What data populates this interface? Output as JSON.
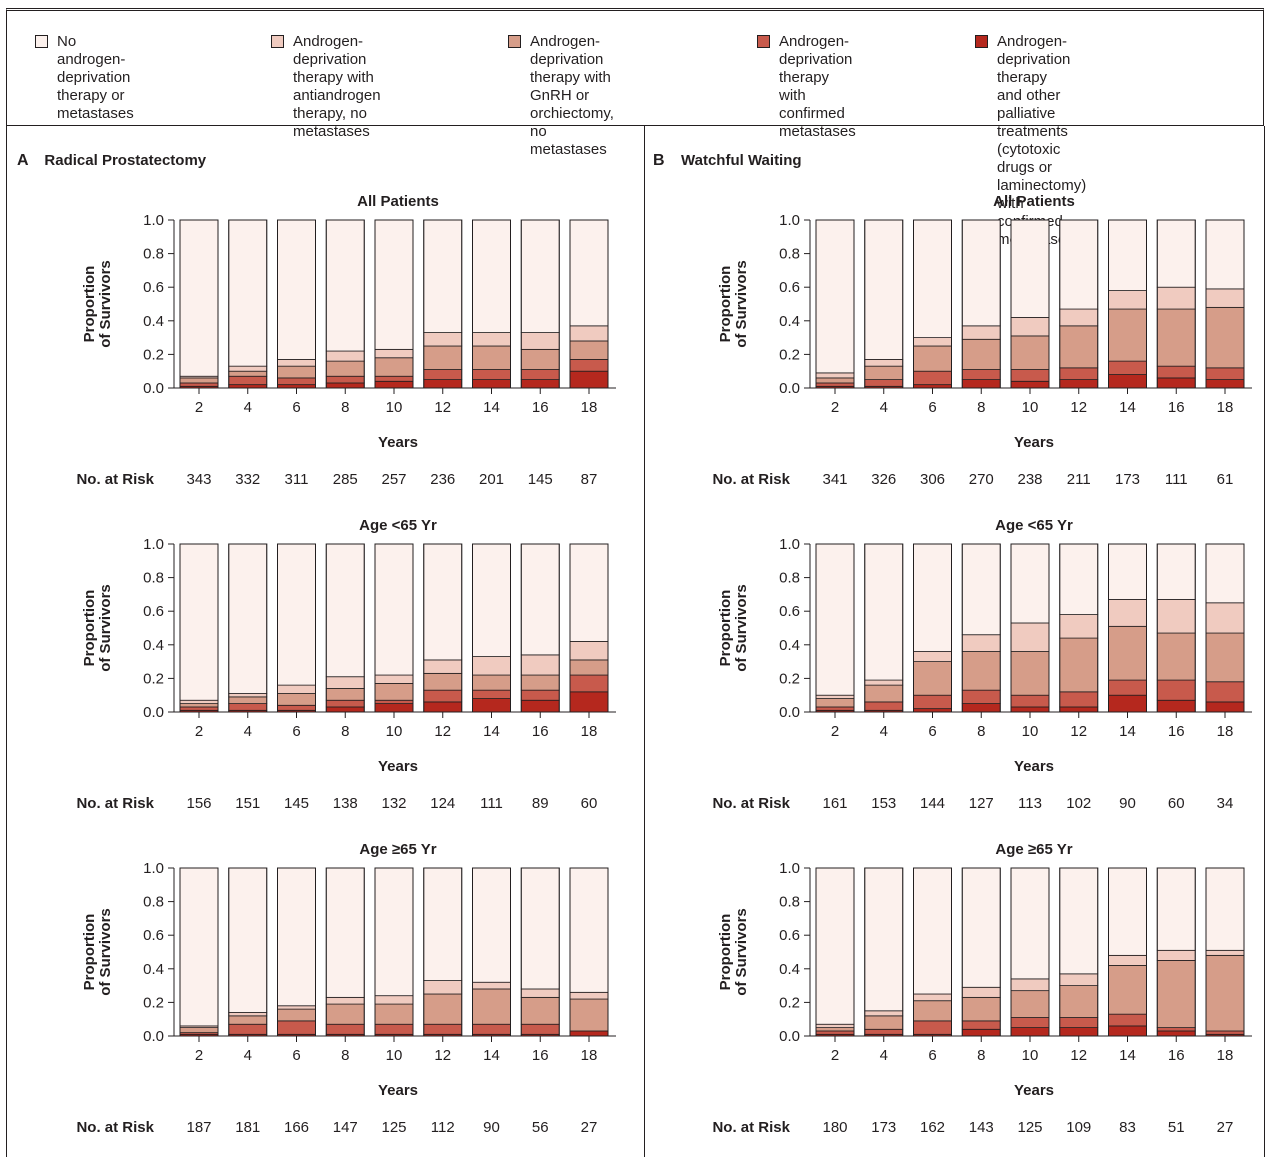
{
  "legend": [
    {
      "label": "No androgen-deprivation\ntherapy or metastases",
      "color": "#fcf1ed"
    },
    {
      "label": "Androgen-deprivation\ntherapy with antiandrogen\ntherapy, no metastases",
      "color": "#f0cbc0"
    },
    {
      "label": "Androgen-deprivation\ntherapy with GnRH or\norchiectomy, no metastases",
      "color": "#d69d89"
    },
    {
      "label": "Androgen-deprivation\ntherapy with confirmed\nmetastases",
      "color": "#c85a4c"
    },
    {
      "label": "Androgen-deprivation therapy\nand other palliative treatments\n(cytotoxic drugs or laminectomy)\nwith confirmed metastases",
      "color": "#b5281e"
    }
  ],
  "panels": [
    {
      "letter": "A",
      "title": "Radical Prostatectomy"
    },
    {
      "letter": "B",
      "title": "Watchful Waiting"
    }
  ],
  "axis": {
    "ylabel_line1": "Proportion",
    "ylabel_line2": "of Survivors",
    "xlabel": "Years",
    "yticks": [
      "0.0",
      "0.2",
      "0.4",
      "0.6",
      "0.8",
      "1.0"
    ],
    "risk_label": "No. at Risk"
  },
  "chart_data": [
    {
      "type": "bar",
      "stacked": true,
      "panel": "A",
      "title": "All Patients",
      "xlabel": "Years",
      "ylabel": "Proportion of Survivors",
      "ylim": [
        0,
        1
      ],
      "categories": [
        "2",
        "4",
        "6",
        "8",
        "10",
        "12",
        "14",
        "16",
        "18"
      ],
      "series": [
        {
          "name": "Androgen-deprivation therapy and other palliative treatments (cytotoxic drugs or laminectomy) with confirmed metastases",
          "values": [
            0.01,
            0.02,
            0.02,
            0.03,
            0.04,
            0.05,
            0.05,
            0.05,
            0.1
          ]
        },
        {
          "name": "Androgen-deprivation therapy with confirmed metastases",
          "values": [
            0.02,
            0.05,
            0.04,
            0.04,
            0.03,
            0.06,
            0.06,
            0.06,
            0.07
          ]
        },
        {
          "name": "Androgen-deprivation therapy with GnRH or orchiectomy, no metastases",
          "values": [
            0.03,
            0.03,
            0.07,
            0.09,
            0.11,
            0.14,
            0.14,
            0.12,
            0.11
          ]
        },
        {
          "name": "Androgen-deprivation therapy with antiandrogen therapy, no metastases",
          "values": [
            0.01,
            0.03,
            0.04,
            0.06,
            0.05,
            0.08,
            0.08,
            0.1,
            0.09
          ]
        },
        {
          "name": "No androgen-deprivation therapy or metastases",
          "values": [
            0.93,
            0.87,
            0.83,
            0.78,
            0.77,
            0.67,
            0.67,
            0.67,
            0.63
          ]
        }
      ],
      "at_risk": [
        343,
        332,
        311,
        285,
        257,
        236,
        201,
        145,
        87
      ]
    },
    {
      "type": "bar",
      "stacked": true,
      "panel": "A",
      "title": "Age <65 Yr",
      "xlabel": "Years",
      "ylabel": "Proportion of Survivors",
      "ylim": [
        0,
        1
      ],
      "categories": [
        "2",
        "4",
        "6",
        "8",
        "10",
        "12",
        "14",
        "16",
        "18"
      ],
      "series": [
        {
          "name": "Androgen-deprivation therapy and other palliative treatments (cytotoxic drugs or laminectomy) with confirmed metastases",
          "values": [
            0.01,
            0.01,
            0.01,
            0.03,
            0.05,
            0.06,
            0.08,
            0.07,
            0.12
          ]
        },
        {
          "name": "Androgen-deprivation therapy with confirmed metastases",
          "values": [
            0.02,
            0.04,
            0.03,
            0.04,
            0.02,
            0.07,
            0.05,
            0.06,
            0.1
          ]
        },
        {
          "name": "Androgen-deprivation therapy with GnRH or orchiectomy, no metastases",
          "values": [
            0.02,
            0.04,
            0.07,
            0.07,
            0.1,
            0.1,
            0.09,
            0.09,
            0.09
          ]
        },
        {
          "name": "Androgen-deprivation therapy with antiandrogen therapy, no metastases",
          "values": [
            0.02,
            0.02,
            0.05,
            0.07,
            0.05,
            0.08,
            0.11,
            0.12,
            0.11
          ]
        },
        {
          "name": "No androgen-deprivation therapy or metastases",
          "values": [
            0.93,
            0.89,
            0.84,
            0.79,
            0.78,
            0.69,
            0.67,
            0.66,
            0.58
          ]
        }
      ],
      "at_risk": [
        156,
        151,
        145,
        138,
        132,
        124,
        111,
        89,
        60
      ]
    },
    {
      "type": "bar",
      "stacked": true,
      "panel": "A",
      "title": "Age ≥65 Yr",
      "xlabel": "Years",
      "ylabel": "Proportion of Survivors",
      "ylim": [
        0,
        1
      ],
      "categories": [
        "2",
        "4",
        "6",
        "8",
        "10",
        "12",
        "14",
        "16",
        "18"
      ],
      "series": [
        {
          "name": "Androgen-deprivation therapy and other palliative treatments (cytotoxic drugs or laminectomy) with confirmed metastases",
          "values": [
            0.01,
            0.01,
            0.01,
            0.01,
            0.01,
            0.01,
            0.01,
            0.01,
            0.03
          ]
        },
        {
          "name": "Androgen-deprivation therapy with confirmed metastases",
          "values": [
            0.01,
            0.06,
            0.08,
            0.06,
            0.06,
            0.06,
            0.06,
            0.06,
            0.0
          ]
        },
        {
          "name": "Androgen-deprivation therapy with GnRH or orchiectomy, no metastases",
          "values": [
            0.03,
            0.05,
            0.07,
            0.12,
            0.12,
            0.18,
            0.21,
            0.16,
            0.19
          ]
        },
        {
          "name": "Androgen-deprivation therapy with antiandrogen therapy, no metastases",
          "values": [
            0.01,
            0.02,
            0.02,
            0.04,
            0.05,
            0.08,
            0.04,
            0.05,
            0.04
          ]
        },
        {
          "name": "No androgen-deprivation therapy or metastases",
          "values": [
            0.94,
            0.86,
            0.82,
            0.77,
            0.76,
            0.67,
            0.68,
            0.72,
            0.74
          ]
        }
      ],
      "at_risk": [
        187,
        181,
        166,
        147,
        125,
        112,
        90,
        56,
        27
      ]
    },
    {
      "type": "bar",
      "stacked": true,
      "panel": "B",
      "title": "All Patients",
      "xlabel": "Years",
      "ylabel": "Proportion of Survivors",
      "ylim": [
        0,
        1
      ],
      "categories": [
        "2",
        "4",
        "6",
        "8",
        "10",
        "12",
        "14",
        "16",
        "18"
      ],
      "series": [
        {
          "name": "Androgen-deprivation therapy and other palliative treatments (cytotoxic drugs or laminectomy) with confirmed metastases",
          "values": [
            0.01,
            0.01,
            0.02,
            0.05,
            0.04,
            0.05,
            0.08,
            0.06,
            0.05
          ]
        },
        {
          "name": "Androgen-deprivation therapy with confirmed metastases",
          "values": [
            0.02,
            0.04,
            0.08,
            0.06,
            0.07,
            0.07,
            0.08,
            0.07,
            0.07
          ]
        },
        {
          "name": "Androgen-deprivation therapy with GnRH or orchiectomy, no metastases",
          "values": [
            0.03,
            0.08,
            0.15,
            0.18,
            0.2,
            0.25,
            0.31,
            0.34,
            0.36
          ]
        },
        {
          "name": "Androgen-deprivation therapy with antiandrogen therapy, no metastases",
          "values": [
            0.03,
            0.04,
            0.05,
            0.08,
            0.11,
            0.1,
            0.11,
            0.13,
            0.11
          ]
        },
        {
          "name": "No androgen-deprivation therapy or metastases",
          "values": [
            0.91,
            0.83,
            0.7,
            0.63,
            0.58,
            0.53,
            0.42,
            0.4,
            0.41
          ]
        }
      ],
      "at_risk": [
        341,
        326,
        306,
        270,
        238,
        211,
        173,
        111,
        61
      ]
    },
    {
      "type": "bar",
      "stacked": true,
      "panel": "B",
      "title": "Age <65 Yr",
      "xlabel": "Years",
      "ylabel": "Proportion of Survivors",
      "ylim": [
        0,
        1
      ],
      "categories": [
        "2",
        "4",
        "6",
        "8",
        "10",
        "12",
        "14",
        "16",
        "18"
      ],
      "series": [
        {
          "name": "Androgen-deprivation therapy and other palliative treatments (cytotoxic drugs or laminectomy) with confirmed metastases",
          "values": [
            0.01,
            0.01,
            0.02,
            0.05,
            0.03,
            0.03,
            0.1,
            0.07,
            0.06
          ]
        },
        {
          "name": "Androgen-deprivation therapy with confirmed metastases",
          "values": [
            0.02,
            0.05,
            0.08,
            0.08,
            0.07,
            0.09,
            0.09,
            0.12,
            0.12
          ]
        },
        {
          "name": "Androgen-deprivation therapy with GnRH or orchiectomy, no metastases",
          "values": [
            0.05,
            0.1,
            0.2,
            0.23,
            0.26,
            0.32,
            0.32,
            0.28,
            0.29
          ]
        },
        {
          "name": "Androgen-deprivation therapy with antiandrogen therapy, no metastases",
          "values": [
            0.02,
            0.03,
            0.06,
            0.1,
            0.17,
            0.14,
            0.16,
            0.2,
            0.18
          ]
        },
        {
          "name": "No androgen-deprivation therapy or metastases",
          "values": [
            0.9,
            0.81,
            0.64,
            0.54,
            0.47,
            0.42,
            0.33,
            0.33,
            0.35
          ]
        }
      ],
      "at_risk": [
        161,
        153,
        144,
        127,
        113,
        102,
        90,
        60,
        34
      ]
    },
    {
      "type": "bar",
      "stacked": true,
      "panel": "B",
      "title": "Age ≥65 Yr",
      "xlabel": "Years",
      "ylabel": "Proportion of Survivors",
      "ylim": [
        0,
        1
      ],
      "categories": [
        "2",
        "4",
        "6",
        "8",
        "10",
        "12",
        "14",
        "16",
        "18"
      ],
      "series": [
        {
          "name": "Androgen-deprivation therapy and other palliative treatments (cytotoxic drugs or laminectomy) with confirmed metastases",
          "values": [
            0.01,
            0.01,
            0.01,
            0.04,
            0.05,
            0.05,
            0.06,
            0.03,
            0.01
          ]
        },
        {
          "name": "Androgen-deprivation therapy with confirmed metastases",
          "values": [
            0.02,
            0.03,
            0.08,
            0.05,
            0.06,
            0.06,
            0.07,
            0.02,
            0.02
          ]
        },
        {
          "name": "Androgen-deprivation therapy with GnRH or orchiectomy, no metastases",
          "values": [
            0.02,
            0.08,
            0.12,
            0.14,
            0.16,
            0.19,
            0.29,
            0.4,
            0.45
          ]
        },
        {
          "name": "Androgen-deprivation therapy with antiandrogen therapy, no metastases",
          "values": [
            0.02,
            0.03,
            0.04,
            0.06,
            0.07,
            0.07,
            0.06,
            0.06,
            0.03
          ]
        },
        {
          "name": "No androgen-deprivation therapy or metastases",
          "values": [
            0.93,
            0.85,
            0.75,
            0.71,
            0.66,
            0.63,
            0.52,
            0.49,
            0.49
          ]
        }
      ],
      "at_risk": [
        180,
        173,
        162,
        143,
        125,
        109,
        83,
        51,
        27
      ]
    }
  ]
}
